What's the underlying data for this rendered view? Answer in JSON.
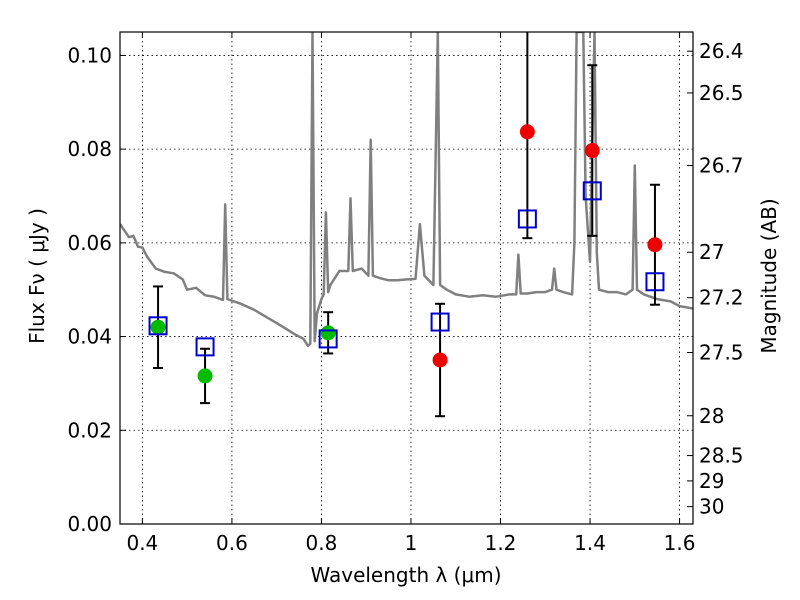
{
  "chart_data": {
    "type": "scatter",
    "xlabel": "Wavelength  λ (μm)",
    "ylabel": "Flux  Fν  ( μJy )",
    "ylabel_right": "Magnitude (AB)",
    "xlim": [
      0.35,
      1.63
    ],
    "ylim": [
      0.0,
      0.105
    ],
    "grid": true,
    "x_ticks": [
      0.4,
      0.6,
      0.8,
      1.0,
      1.2,
      1.4,
      1.6
    ],
    "x_tick_labels": [
      "0.4",
      "0.6",
      "0.8",
      "1",
      "1.2",
      "1.4",
      "1.6"
    ],
    "y_ticks": [
      0.0,
      0.02,
      0.04,
      0.06,
      0.08,
      0.1
    ],
    "y_tick_labels": [
      "0.00",
      "0.02",
      "0.04",
      "0.06",
      "0.08",
      "0.10"
    ],
    "right_ticks": [
      {
        "label": "26.4",
        "flux": 0.1009
      },
      {
        "label": "26.5",
        "flux": 0.092
      },
      {
        "label": "26.7",
        "flux": 0.0765
      },
      {
        "label": "27",
        "flux": 0.058
      },
      {
        "label": "27.2",
        "flux": 0.0483
      },
      {
        "label": "27.5",
        "flux": 0.0366
      },
      {
        "label": "28",
        "flux": 0.0231
      },
      {
        "label": "28.5",
        "flux": 0.0146
      },
      {
        "label": "29",
        "flux": 0.0092
      },
      {
        "label": "30",
        "flux": 0.0037
      }
    ],
    "series": [
      {
        "marker": "green-circle",
        "color": "#00bb00",
        "points": [
          {
            "x": 0.435,
            "y": 0.042,
            "err_low": 0.0087,
            "err_high": 0.0087
          },
          {
            "x": 0.54,
            "y": 0.0316,
            "err_low": 0.0058,
            "err_high": 0.0058
          },
          {
            "x": 0.815,
            "y": 0.0408,
            "err_low": 0.0044,
            "err_high": 0.0044
          }
        ]
      },
      {
        "marker": "red-circle",
        "color": "#ee0000",
        "points": [
          {
            "x": 1.065,
            "y": 0.035,
            "err_low": 0.012,
            "err_high": 0.012
          },
          {
            "x": 1.26,
            "y": 0.0837,
            "err_low": 0.0227,
            "err_high": 0.0227
          },
          {
            "x": 1.405,
            "y": 0.0797,
            "err_low": 0.0182,
            "err_high": 0.0182
          },
          {
            "x": 1.545,
            "y": 0.0596,
            "err_low": 0.0128,
            "err_high": 0.0128
          }
        ]
      },
      {
        "marker": "blue-open-square",
        "color": "#0000cc",
        "points": [
          {
            "x": 0.435,
            "y": 0.0423
          },
          {
            "x": 0.54,
            "y": 0.0378
          },
          {
            "x": 0.815,
            "y": 0.0395
          },
          {
            "x": 1.065,
            "y": 0.0431
          },
          {
            "x": 1.26,
            "y": 0.0651
          },
          {
            "x": 1.405,
            "y": 0.0711
          },
          {
            "x": 1.545,
            "y": 0.0517
          }
        ]
      },
      {
        "marker": "gray-line",
        "color": "#808080",
        "points": [
          {
            "x": 0.35,
            "y": 0.064
          },
          {
            "x": 0.37,
            "y": 0.0612
          },
          {
            "x": 0.38,
            "y": 0.0615
          },
          {
            "x": 0.39,
            "y": 0.0592
          },
          {
            "x": 0.4,
            "y": 0.059
          },
          {
            "x": 0.41,
            "y": 0.0571
          },
          {
            "x": 0.43,
            "y": 0.0545
          },
          {
            "x": 0.45,
            "y": 0.0538
          },
          {
            "x": 0.47,
            "y": 0.0535
          },
          {
            "x": 0.49,
            "y": 0.0522
          },
          {
            "x": 0.5,
            "y": 0.05
          },
          {
            "x": 0.52,
            "y": 0.0504
          },
          {
            "x": 0.54,
            "y": 0.0488
          },
          {
            "x": 0.56,
            "y": 0.0485
          },
          {
            "x": 0.58,
            "y": 0.0478
          },
          {
            "x": 0.585,
            "y": 0.0682
          },
          {
            "x": 0.59,
            "y": 0.048
          },
          {
            "x": 0.62,
            "y": 0.047
          },
          {
            "x": 0.65,
            "y": 0.0457
          },
          {
            "x": 0.68,
            "y": 0.044
          },
          {
            "x": 0.71,
            "y": 0.0423
          },
          {
            "x": 0.74,
            "y": 0.0405
          },
          {
            "x": 0.76,
            "y": 0.0395
          },
          {
            "x": 0.77,
            "y": 0.038
          },
          {
            "x": 0.775,
            "y": 0.0385
          },
          {
            "x": 0.78,
            "y": 0.105
          },
          {
            "x": 0.785,
            "y": 0.039
          },
          {
            "x": 0.79,
            "y": 0.045
          },
          {
            "x": 0.8,
            "y": 0.048
          },
          {
            "x": 0.805,
            "y": 0.049
          },
          {
            "x": 0.81,
            "y": 0.0665
          },
          {
            "x": 0.815,
            "y": 0.0495
          },
          {
            "x": 0.82,
            "y": 0.051
          },
          {
            "x": 0.84,
            "y": 0.054
          },
          {
            "x": 0.86,
            "y": 0.054
          },
          {
            "x": 0.865,
            "y": 0.0695
          },
          {
            "x": 0.87,
            "y": 0.054
          },
          {
            "x": 0.89,
            "y": 0.0545
          },
          {
            "x": 0.905,
            "y": 0.053
          },
          {
            "x": 0.91,
            "y": 0.082
          },
          {
            "x": 0.915,
            "y": 0.053
          },
          {
            "x": 0.93,
            "y": 0.0525
          },
          {
            "x": 0.95,
            "y": 0.052
          },
          {
            "x": 0.97,
            "y": 0.052
          },
          {
            "x": 0.99,
            "y": 0.0522
          },
          {
            "x": 1.01,
            "y": 0.0523
          },
          {
            "x": 1.02,
            "y": 0.064
          },
          {
            "x": 1.03,
            "y": 0.053
          },
          {
            "x": 1.05,
            "y": 0.051
          },
          {
            "x": 1.06,
            "y": 0.105
          },
          {
            "x": 1.065,
            "y": 0.051
          },
          {
            "x": 1.08,
            "y": 0.05
          },
          {
            "x": 1.1,
            "y": 0.049
          },
          {
            "x": 1.13,
            "y": 0.0485
          },
          {
            "x": 1.16,
            "y": 0.0488
          },
          {
            "x": 1.19,
            "y": 0.0485
          },
          {
            "x": 1.22,
            "y": 0.049
          },
          {
            "x": 1.235,
            "y": 0.049
          },
          {
            "x": 1.24,
            "y": 0.0575
          },
          {
            "x": 1.245,
            "y": 0.0492
          },
          {
            "x": 1.26,
            "y": 0.0492
          },
          {
            "x": 1.28,
            "y": 0.0495
          },
          {
            "x": 1.3,
            "y": 0.0495
          },
          {
            "x": 1.315,
            "y": 0.05
          },
          {
            "x": 1.32,
            "y": 0.0545
          },
          {
            "x": 1.325,
            "y": 0.05
          },
          {
            "x": 1.34,
            "y": 0.0495
          },
          {
            "x": 1.36,
            "y": 0.049
          },
          {
            "x": 1.365,
            "y": 0.06
          },
          {
            "x": 1.37,
            "y": 0.105
          },
          {
            "x": 1.385,
            "y": 0.105
          },
          {
            "x": 1.39,
            "y": 0.07
          },
          {
            "x": 1.4,
            "y": 0.056
          },
          {
            "x": 1.41,
            "y": 0.105
          },
          {
            "x": 1.415,
            "y": 0.058
          },
          {
            "x": 1.42,
            "y": 0.05
          },
          {
            "x": 1.44,
            "y": 0.0495
          },
          {
            "x": 1.46,
            "y": 0.0495
          },
          {
            "x": 1.48,
            "y": 0.049
          },
          {
            "x": 1.495,
            "y": 0.05
          },
          {
            "x": 1.5,
            "y": 0.0765
          },
          {
            "x": 1.505,
            "y": 0.05
          },
          {
            "x": 1.52,
            "y": 0.049
          },
          {
            "x": 1.55,
            "y": 0.048
          },
          {
            "x": 1.58,
            "y": 0.0475
          },
          {
            "x": 1.6,
            "y": 0.0465
          },
          {
            "x": 1.63,
            "y": 0.046
          }
        ]
      }
    ]
  }
}
